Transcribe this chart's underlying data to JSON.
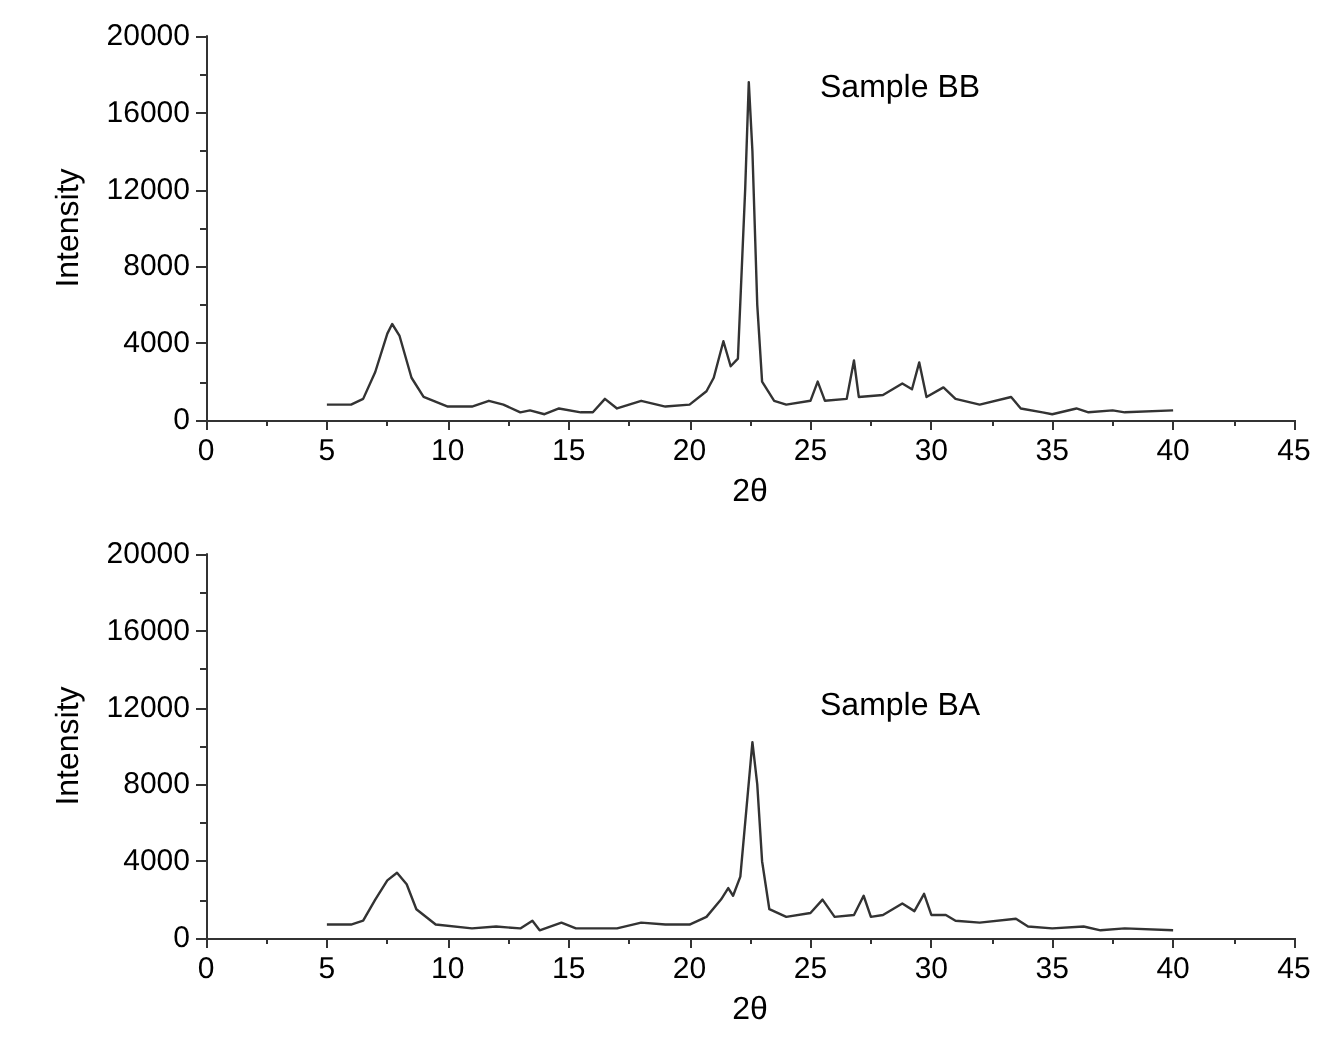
{
  "chart_data": [
    {
      "type": "line",
      "xlabel": "2θ",
      "ylabel": "Intensity",
      "annotations": [
        "Sample BB"
      ],
      "xlim": [
        0,
        45
      ],
      "xticks": [
        0,
        5,
        10,
        15,
        20,
        25,
        30,
        35,
        40,
        45
      ],
      "ylim": [
        0,
        20000
      ],
      "yticks": [
        0,
        4000,
        8000,
        12000,
        16000,
        20000
      ],
      "grid": false,
      "marker": "none",
      "line_style": "solid",
      "series": [
        {
          "color": "#333333",
          "x": [
            5,
            6,
            6.5,
            7,
            7.5,
            7.7,
            8,
            8.5,
            9,
            10,
            11,
            11.7,
            12.3,
            13,
            13.4,
            14,
            14.6,
            15.5,
            16,
            16.5,
            17,
            18,
            19,
            20,
            20.7,
            21,
            21.4,
            21.7,
            22,
            22.3,
            22.45,
            22.6,
            22.8,
            23,
            23.5,
            24,
            25,
            25.3,
            25.6,
            26.5,
            26.8,
            27,
            28,
            28.8,
            29.2,
            29.5,
            29.8,
            30.5,
            31,
            32,
            33.3,
            33.7,
            34.6,
            35,
            36,
            36.5,
            37.5,
            38,
            40
          ],
          "values": [
            800,
            800,
            1100,
            2500,
            4500,
            5000,
            4400,
            2200,
            1200,
            700,
            700,
            1000,
            800,
            400,
            500,
            300,
            600,
            400,
            400,
            1100,
            600,
            1000,
            700,
            800,
            1500,
            2200,
            4100,
            2800,
            3200,
            12000,
            17600,
            14000,
            6000,
            2000,
            1000,
            800,
            1000,
            2000,
            1000,
            1100,
            3100,
            1200,
            1300,
            1900,
            1600,
            3000,
            1200,
            1700,
            1100,
            800,
            1200,
            600,
            400,
            300,
            600,
            400,
            500,
            400,
            500
          ]
        }
      ]
    },
    {
      "type": "line",
      "xlabel": "2θ",
      "ylabel": "Intensity",
      "annotations": [
        "Sample BA"
      ],
      "xlim": [
        0,
        45
      ],
      "xticks": [
        0,
        5,
        10,
        15,
        20,
        25,
        30,
        35,
        40,
        45
      ],
      "ylim": [
        0,
        20000
      ],
      "yticks": [
        0,
        4000,
        8000,
        12000,
        16000,
        20000
      ],
      "grid": false,
      "marker": "none",
      "line_style": "solid",
      "series": [
        {
          "color": "#333333",
          "x": [
            5,
            6,
            6.5,
            7,
            7.5,
            7.9,
            8.3,
            8.7,
            9.5,
            11,
            12,
            13,
            13.5,
            13.8,
            14.7,
            15.3,
            17,
            18,
            19,
            20,
            20.7,
            21.3,
            21.6,
            21.8,
            22.1,
            22.6,
            22.8,
            23,
            23.3,
            24,
            25,
            25.5,
            26,
            26.8,
            27.2,
            27.5,
            28,
            28.8,
            29.3,
            29.7,
            30,
            30.6,
            31,
            32,
            33.5,
            34,
            35,
            36.3,
            37,
            38,
            40
          ],
          "values": [
            700,
            700,
            900,
            2000,
            3000,
            3400,
            2800,
            1500,
            700,
            500,
            600,
            500,
            900,
            400,
            800,
            500,
            500,
            800,
            700,
            700,
            1100,
            2000,
            2600,
            2200,
            3200,
            10200,
            8000,
            4000,
            1500,
            1100,
            1300,
            2000,
            1100,
            1200,
            2200,
            1100,
            1200,
            1800,
            1400,
            2300,
            1200,
            1200,
            900,
            800,
            1000,
            600,
            500,
            600,
            400,
            500,
            400
          ]
        }
      ]
    }
  ]
}
